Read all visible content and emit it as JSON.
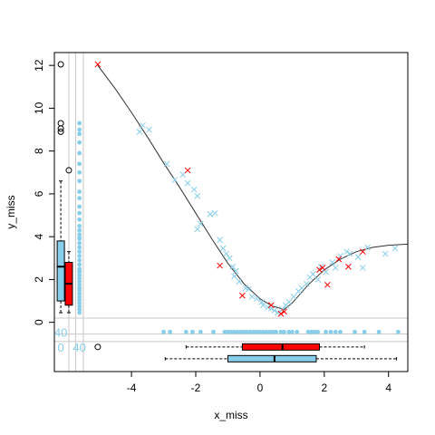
{
  "chart_data": {
    "type": "scatter",
    "title": "",
    "xlabel": "x_miss",
    "ylabel": "y_miss",
    "xlim": [
      -6.4,
      4.6
    ],
    "ylim": [
      -2.3,
      12.6
    ],
    "x_ticks": [
      -4,
      -2,
      0,
      2,
      4
    ],
    "y_ticks": [
      0,
      2,
      4,
      6,
      8,
      10,
      12
    ],
    "grid": false,
    "legend": "none",
    "colors": {
      "observed": "#87CEEB",
      "imputed": "#FF0000",
      "curve": "#333333",
      "outlier": "#000000",
      "missing_bands": "#c8c8c8"
    },
    "missing_counts": {
      "y_axis_strip": "40",
      "x_axis_strip": "40",
      "both_missing": "0"
    },
    "observed_points": [
      {
        "x": -3.65,
        "y": 9.2
      },
      {
        "x": -3.75,
        "y": 8.9
      },
      {
        "x": -3.45,
        "y": 9.0
      },
      {
        "x": -2.9,
        "y": 7.4
      },
      {
        "x": -2.65,
        "y": 6.65
      },
      {
        "x": -2.4,
        "y": 6.9
      },
      {
        "x": -2.25,
        "y": 6.5
      },
      {
        "x": -2.05,
        "y": 6.2
      },
      {
        "x": -1.95,
        "y": 5.9
      },
      {
        "x": -1.85,
        "y": 4.6
      },
      {
        "x": -1.95,
        "y": 4.35
      },
      {
        "x": -1.55,
        "y": 5.05
      },
      {
        "x": -1.4,
        "y": 5.1
      },
      {
        "x": -1.25,
        "y": 3.85
      },
      {
        "x": -1.15,
        "y": 3.45
      },
      {
        "x": -1.05,
        "y": 3.2
      },
      {
        "x": -0.95,
        "y": 3.0
      },
      {
        "x": -0.85,
        "y": 2.6
      },
      {
        "x": -0.75,
        "y": 2.4
      },
      {
        "x": -0.8,
        "y": 2.15
      },
      {
        "x": -0.65,
        "y": 1.9
      },
      {
        "x": -0.45,
        "y": 1.6
      },
      {
        "x": -0.35,
        "y": 1.55
      },
      {
        "x": -0.25,
        "y": 1.2
      },
      {
        "x": -0.1,
        "y": 1.1
      },
      {
        "x": 0.05,
        "y": 0.95
      },
      {
        "x": 0.1,
        "y": 0.8
      },
      {
        "x": 0.25,
        "y": 0.7
      },
      {
        "x": 0.35,
        "y": 0.65
      },
      {
        "x": 0.45,
        "y": 0.55
      },
      {
        "x": 0.55,
        "y": 0.45
      },
      {
        "x": 0.7,
        "y": 0.6
      },
      {
        "x": 0.8,
        "y": 0.8
      },
      {
        "x": 0.9,
        "y": 0.95
      },
      {
        "x": 1.05,
        "y": 1.2
      },
      {
        "x": 1.2,
        "y": 1.45
      },
      {
        "x": 1.3,
        "y": 1.6
      },
      {
        "x": 1.45,
        "y": 1.8
      },
      {
        "x": 1.55,
        "y": 2.1
      },
      {
        "x": 1.65,
        "y": 2.25
      },
      {
        "x": 1.8,
        "y": 2.0
      },
      {
        "x": 1.9,
        "y": 2.6
      },
      {
        "x": 2.05,
        "y": 2.35
      },
      {
        "x": 2.25,
        "y": 2.8
      },
      {
        "x": 2.35,
        "y": 2.55
      },
      {
        "x": 2.5,
        "y": 3.1
      },
      {
        "x": 2.7,
        "y": 3.3
      },
      {
        "x": 2.8,
        "y": 3.2
      },
      {
        "x": 3.05,
        "y": 3.05
      },
      {
        "x": 3.2,
        "y": 2.55
      },
      {
        "x": 3.35,
        "y": 3.5
      },
      {
        "x": 3.9,
        "y": 3.2
      },
      {
        "x": 4.2,
        "y": 3.45
      }
    ],
    "imputed_points": [
      {
        "x": -5.05,
        "y": 12.05
      },
      {
        "x": -2.25,
        "y": 7.1
      },
      {
        "x": -1.25,
        "y": 2.65
      },
      {
        "x": -0.55,
        "y": 1.25
      },
      {
        "x": 0.35,
        "y": 0.8
      },
      {
        "x": 0.65,
        "y": 0.4
      },
      {
        "x": 0.75,
        "y": 0.5
      },
      {
        "x": 1.85,
        "y": 2.45
      },
      {
        "x": 1.95,
        "y": 2.55
      },
      {
        "x": 2.1,
        "y": 1.75
      },
      {
        "x": 2.45,
        "y": 2.95
      },
      {
        "x": 2.75,
        "y": 2.6
      },
      {
        "x": 3.2,
        "y": 3.3
      }
    ],
    "curve": [
      {
        "x": -5.05,
        "y": 12.0
      },
      {
        "x": -4.5,
        "y": 10.9
      },
      {
        "x": -4.0,
        "y": 9.8
      },
      {
        "x": -3.5,
        "y": 8.65
      },
      {
        "x": -3.0,
        "y": 7.45
      },
      {
        "x": -2.5,
        "y": 6.3
      },
      {
        "x": -2.0,
        "y": 5.1
      },
      {
        "x": -1.5,
        "y": 3.9
      },
      {
        "x": -1.0,
        "y": 2.75
      },
      {
        "x": -0.5,
        "y": 1.8
      },
      {
        "x": 0.0,
        "y": 1.1
      },
      {
        "x": 0.4,
        "y": 0.75
      },
      {
        "x": 0.75,
        "y": 0.6
      },
      {
        "x": 1.0,
        "y": 0.9
      },
      {
        "x": 1.5,
        "y": 1.75
      },
      {
        "x": 2.0,
        "y": 2.45
      },
      {
        "x": 2.5,
        "y": 2.95
      },
      {
        "x": 3.0,
        "y": 3.3
      },
      {
        "x": 3.5,
        "y": 3.5
      },
      {
        "x": 4.0,
        "y": 3.6
      },
      {
        "x": 4.6,
        "y": 3.65
      }
    ],
    "x_missing_y_values": [
      0.45,
      0.6,
      0.75,
      0.9,
      1.05,
      1.2,
      1.35,
      1.5,
      1.6,
      1.75,
      1.9,
      2.05,
      2.2,
      2.35,
      2.5,
      2.7,
      2.9,
      3.1,
      3.3,
      3.5,
      3.7,
      3.9,
      4.1,
      4.3,
      4.5,
      4.8,
      5.1,
      5.4,
      5.8,
      6.1,
      6.6,
      7.0,
      7.4,
      7.9,
      8.4,
      8.8,
      9.0,
      9.3,
      3.95,
      2.4
    ],
    "y_missing_x_values": [
      -3.0,
      -2.8,
      -2.3,
      -2.1,
      -1.85,
      -1.45,
      -1.1,
      -1.0,
      -0.9,
      -0.8,
      -0.7,
      -0.6,
      -0.5,
      -0.4,
      -0.3,
      -0.2,
      -0.1,
      0.0,
      0.1,
      0.2,
      0.3,
      0.4,
      0.5,
      0.65,
      0.75,
      0.9,
      1.0,
      1.15,
      1.5,
      1.6,
      1.7,
      1.8,
      2.05,
      2.2,
      2.35,
      2.5,
      2.95,
      3.25,
      3.7,
      4.3
    ],
    "boxplot_y_observed": {
      "whisker_low": 0.45,
      "q1": 1.0,
      "median": 2.6,
      "q3": 3.8,
      "whisker_high": 6.6,
      "outliers": [
        8.9,
        9.05,
        9.3,
        12.05
      ]
    },
    "boxplot_y_imputed": {
      "whisker_low": 0.45,
      "q1": 0.8,
      "median": 1.8,
      "q3": 2.8,
      "whisker_high": 3.3,
      "outliers": [
        7.1
      ]
    },
    "boxplot_x_imputed": {
      "whisker_low": -2.3,
      "q1": -0.55,
      "median": 0.7,
      "q3": 1.85,
      "whisker_high": 3.25,
      "outliers": [
        -5.05
      ]
    },
    "boxplot_x_observed": {
      "whisker_low": -2.95,
      "q1": -1.0,
      "median": 0.45,
      "q3": 1.75,
      "whisker_high": 4.25,
      "outliers": []
    }
  }
}
